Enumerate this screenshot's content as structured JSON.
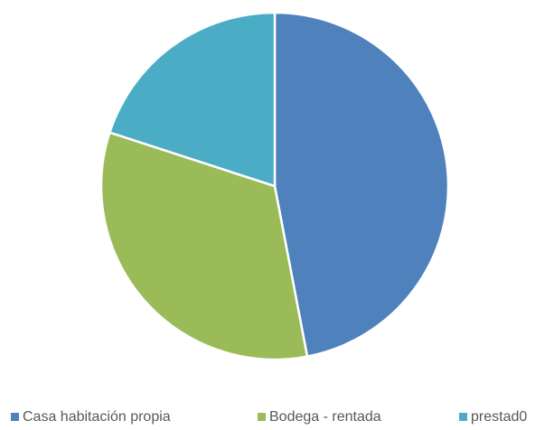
{
  "chart_data": {
    "type": "pie",
    "categories": [
      "Casa habitación propia",
      "Bodega - rentada",
      "prestad0"
    ],
    "values": [
      47,
      33,
      20
    ],
    "colors": [
      "#4f81bd",
      "#9bbb59",
      "#4bacc6"
    ],
    "legend": "bottom"
  }
}
